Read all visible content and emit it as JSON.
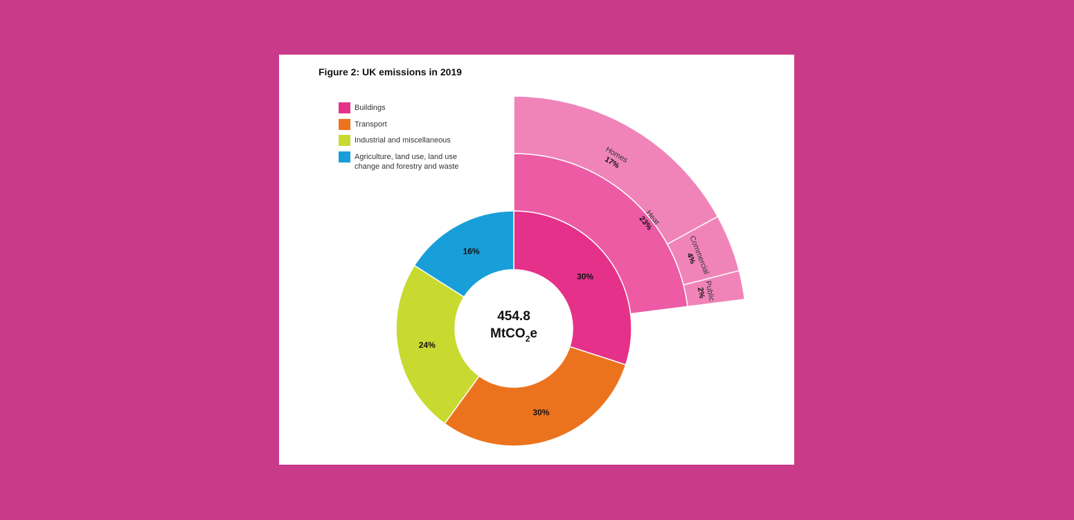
{
  "figure": {
    "title": "Figure 2: UK emissions in 2019"
  },
  "colors": {
    "page_background": "#c93a89",
    "card_background": "#ffffff"
  },
  "legend": [
    {
      "label": "Buildings",
      "color": "#e5318a"
    },
    {
      "label": "Transport",
      "color": "#ec731d"
    },
    {
      "label": "Industrial and miscellaneous",
      "color": "#c8da2f"
    },
    {
      "label": "Agriculture, land use, land use change and forestry and waste",
      "color": "#189fd9"
    }
  ],
  "center": {
    "value": "454.8",
    "unit_main": "MtCO",
    "unit_sub": "2",
    "unit_tail": "e"
  },
  "chart_data": {
    "type": "pie",
    "total": 454.8,
    "unit": "MtCO2e",
    "series": [
      {
        "category": "Buildings",
        "value": 30,
        "label": "30%",
        "color": "#e5318a"
      },
      {
        "category": "Transport",
        "value": 30,
        "label": "30%",
        "color": "#ec731d"
      },
      {
        "category": "Industrial and miscellaneous",
        "value": 24,
        "label": "24%",
        "color": "#c8da2f"
      },
      {
        "category": "Agriculture, land use, land use change and forestry and waste",
        "value": 16,
        "label": "16%",
        "color": "#189fd9"
      }
    ],
    "breakdown": {
      "parent": "Buildings",
      "level1": [
        {
          "name": "Heat",
          "value": 23,
          "label": "23%",
          "color": "#ec5ba4"
        }
      ],
      "level2": [
        {
          "name": "Homes",
          "value": 17,
          "label": "17%",
          "color": "#f084b9"
        },
        {
          "name": "Commercial",
          "value": 4,
          "label": "4%",
          "color": "#f084b9"
        },
        {
          "name": "Public",
          "value": 2,
          "label": "2%",
          "color": "#f084b9"
        }
      ]
    }
  }
}
